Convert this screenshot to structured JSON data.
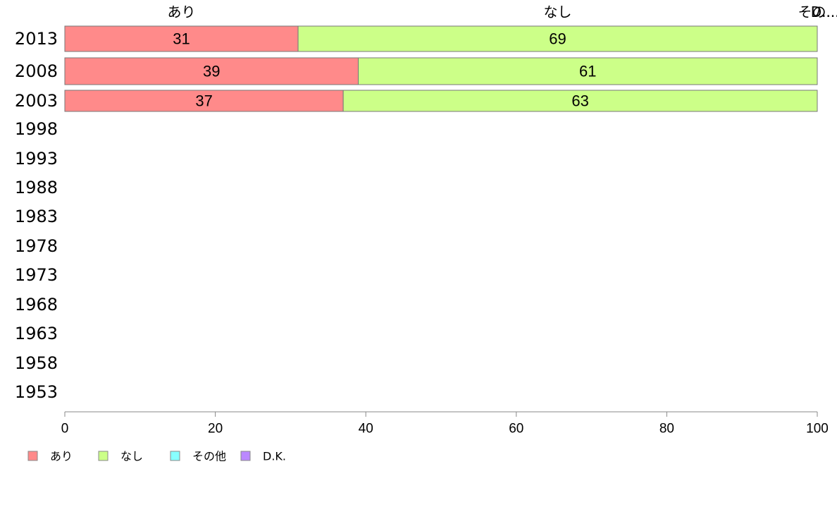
{
  "chart_data": {
    "type": "bar",
    "orientation": "horizontal",
    "stacked": true,
    "categories": [
      "2013",
      "2008",
      "2003",
      "1998",
      "1993",
      "1988",
      "1983",
      "1978",
      "1973",
      "1968",
      "1963",
      "1958",
      "1953"
    ],
    "series": [
      {
        "name": "あり",
        "color": "#ff8a8a",
        "values": [
          31,
          39,
          37,
          null,
          null,
          null,
          null,
          null,
          null,
          null,
          null,
          null,
          null
        ]
      },
      {
        "name": "なし",
        "color": "#ccff88",
        "values": [
          69,
          61,
          63,
          null,
          null,
          null,
          null,
          null,
          null,
          null,
          null,
          null,
          null
        ]
      },
      {
        "name": "その他",
        "color": "#88ffff",
        "values": [
          0,
          0,
          0,
          null,
          null,
          null,
          null,
          null,
          null,
          null,
          null,
          null,
          null
        ]
      },
      {
        "name": "D.K.",
        "color": "#bb88ff",
        "values": [
          0,
          0,
          0,
          null,
          null,
          null,
          null,
          null,
          null,
          null,
          null,
          null,
          null
        ]
      }
    ],
    "top_labels": [
      "あり",
      "なし",
      "その..."
    ],
    "top_label_overlap": "D...",
    "xlim": [
      0,
      100
    ],
    "xticks": [
      0,
      20,
      40,
      60,
      80,
      100
    ],
    "grid": false,
    "legend_position": "bottom-left"
  }
}
